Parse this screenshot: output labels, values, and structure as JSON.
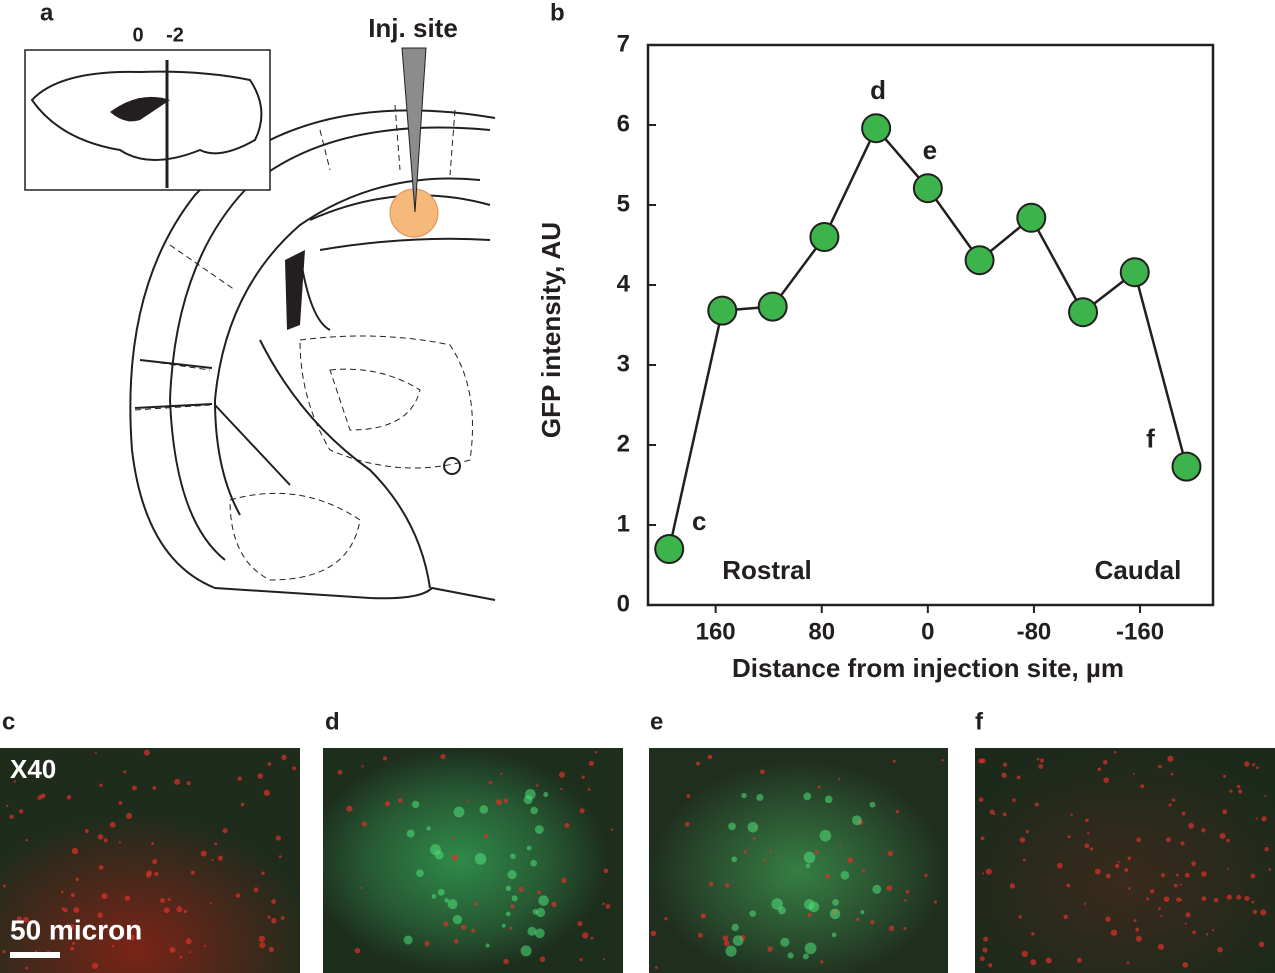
{
  "figure": {
    "panel_labels": [
      "a",
      "b",
      "c",
      "d",
      "e",
      "f"
    ],
    "diagram_labels": [
      "0",
      "-2"
    ],
    "injection_label": "Inj. site",
    "magnification": "X40",
    "scale_bar": "50 micron"
  },
  "chart_data": {
    "type": "line",
    "y_label": "GFP intensity, AU",
    "x_label": "Distance from injection site, µm",
    "annotations": [
      "Rostral",
      "Caudal"
    ],
    "x": [
      195,
      155,
      117,
      78,
      39,
      0,
      -39,
      -78,
      -117,
      -156,
      -195
    ],
    "series": [
      {
        "color": "#3cb44b",
        "values": [
          0.7,
          3.68,
          3.73,
          4.6,
          5.96,
          5.21,
          4.31,
          4.84,
          3.66,
          4.16,
          1.73
        ],
        "point_labels": [
          "c",
          null,
          null,
          null,
          "d",
          "e",
          null,
          null,
          null,
          null,
          "f"
        ]
      }
    ],
    "xlim": [
      211,
      -215
    ],
    "xticks": [
      160,
      80,
      0,
      -80,
      -160
    ],
    "ylim": [
      0,
      7
    ],
    "yticks": [
      0,
      1,
      2,
      3,
      4,
      5,
      6,
      7
    ]
  }
}
